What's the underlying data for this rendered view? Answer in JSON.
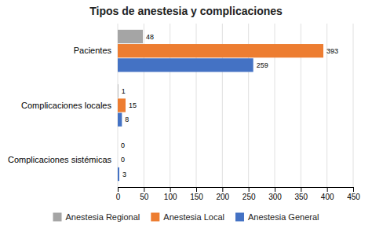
{
  "chart_data": {
    "type": "bar",
    "orientation": "horizontal",
    "title": "Tipos de anestesia y complicaciones",
    "categories": [
      "Complicaciones sistémicas",
      "Complicaciones locales",
      "Pacientes"
    ],
    "series": [
      {
        "name": "Anestesia Regional",
        "color": "#A5A5A5",
        "values": [
          0,
          1,
          48
        ]
      },
      {
        "name": "Anestesia Local",
        "color": "#ED7D31",
        "values": [
          0,
          15,
          393
        ]
      },
      {
        "name": "Anestesia General",
        "color": "#4472C4",
        "values": [
          3,
          8,
          259
        ]
      }
    ],
    "xlim": [
      0,
      450
    ],
    "xticks": [
      0,
      50,
      100,
      150,
      200,
      250,
      300,
      350,
      400,
      450
    ],
    "grid": true,
    "data_labels": true,
    "legend": "bottom"
  }
}
